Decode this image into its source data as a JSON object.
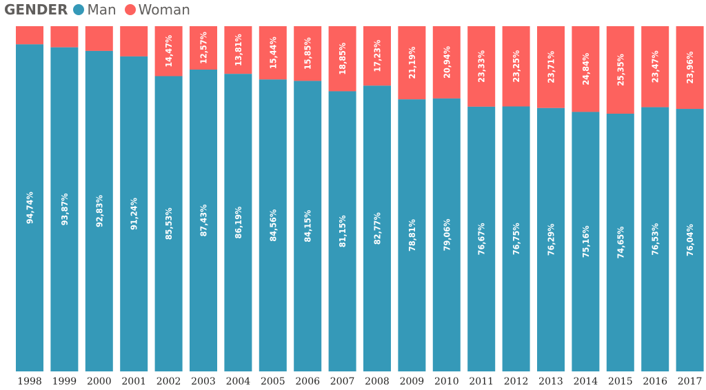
{
  "legend": {
    "title": "GENDER",
    "items": [
      {
        "label": "Man",
        "color": "#3599b8"
      },
      {
        "label": "Woman",
        "color": "#fd625e"
      }
    ]
  },
  "chart_data": {
    "type": "bar",
    "stacked": "percent",
    "title": "",
    "xlabel": "",
    "ylabel": "",
    "ylim": [
      0,
      100
    ],
    "grid": false,
    "legend_position": "top-left",
    "categories": [
      "1998",
      "1999",
      "2000",
      "2001",
      "2002",
      "2003",
      "2004",
      "2005",
      "2006",
      "2007",
      "2008",
      "2009",
      "2010",
      "2011",
      "2012",
      "2013",
      "2014",
      "2015",
      "2016",
      "2017"
    ],
    "series": [
      {
        "name": "Man",
        "color": "#3599b8",
        "values": [
          94.74,
          93.87,
          92.83,
          91.24,
          85.53,
          87.43,
          86.19,
          84.56,
          84.15,
          81.15,
          82.77,
          78.81,
          79.06,
          76.67,
          76.75,
          76.29,
          75.16,
          74.65,
          76.53,
          76.04
        ],
        "labels": [
          "94,74%",
          "93,87%",
          "92,83%",
          "91,24%",
          "85,53%",
          "87,43%",
          "86,19%",
          "84,56%",
          "84,15%",
          "81,15%",
          "82,77%",
          "78,81%",
          "79,06%",
          "76,67%",
          "76,75%",
          "76,29%",
          "75,16%",
          "74,65%",
          "76,53%",
          "76,04%"
        ]
      },
      {
        "name": "Woman",
        "color": "#fd625e",
        "values": [
          5.26,
          6.13,
          7.17,
          8.76,
          14.47,
          12.57,
          13.81,
          15.44,
          15.85,
          18.85,
          17.23,
          21.19,
          20.94,
          23.33,
          23.25,
          23.71,
          24.84,
          25.35,
          23.47,
          23.96
        ],
        "labels": [
          "",
          "",
          "",
          "",
          "14,47%",
          "12,57%",
          "13,81%",
          "15,44%",
          "15,85%",
          "18,85%",
          "17,23%",
          "21,19%",
          "20,94%",
          "23,33%",
          "23,25%",
          "23,71%",
          "24,84%",
          "25,35%",
          "23,47%",
          "23,96%"
        ]
      }
    ]
  }
}
